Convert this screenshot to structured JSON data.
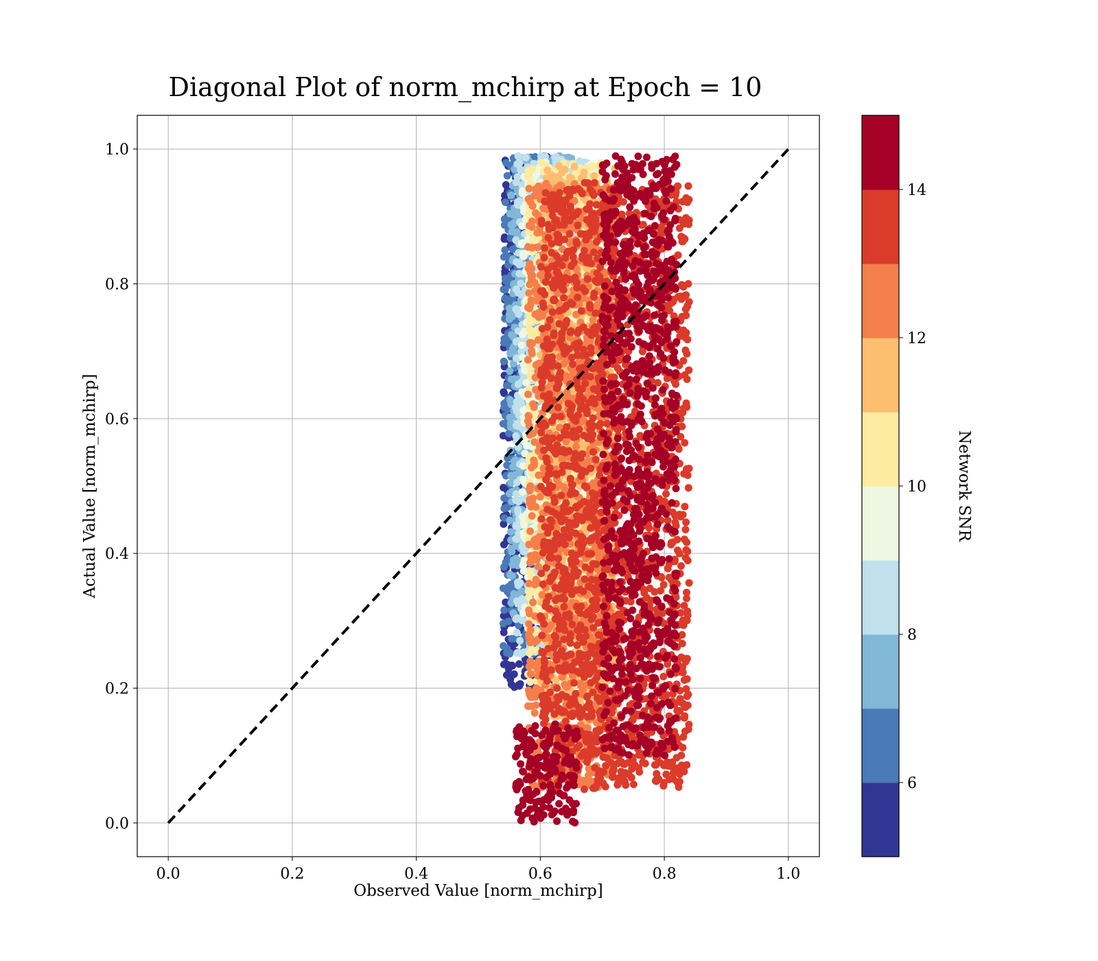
{
  "chart_data": {
    "type": "scatter",
    "title": "Diagonal Plot of norm_mchirp at Epoch = 10",
    "xlabel": "Observed Value [norm_mchirp]",
    "ylabel": "Actual Value [norm_mchirp]",
    "xlim": [
      -0.05,
      1.05
    ],
    "ylim": [
      -0.05,
      1.05
    ],
    "xticks": [
      "0.0",
      "0.2",
      "0.4",
      "0.6",
      "0.8",
      "1.0"
    ],
    "yticks": [
      "0.0",
      "0.2",
      "0.4",
      "0.6",
      "0.8",
      "1.0"
    ],
    "grid": true,
    "reference_line": {
      "x": [
        0,
        1
      ],
      "y": [
        0,
        1
      ],
      "style": "dashed",
      "color": "#000000"
    },
    "colorbar": {
      "label": "Network SNR",
      "range": [
        5,
        15
      ],
      "ticks": [
        "6",
        "8",
        "10",
        "12",
        "14"
      ],
      "tick_values": [
        6,
        8,
        10,
        12,
        14
      ],
      "colors": [
        "#313695",
        "#4a7ab7",
        "#81b7d7",
        "#bfe0ec",
        "#eef7e1",
        "#fdeba2",
        "#fdbe70",
        "#f57f4b",
        "#db3b2a",
        "#a50026"
      ]
    },
    "point_groups": [
      {
        "snr": 5.5,
        "x_range": [
          0.54,
          0.62
        ],
        "y_range": [
          0.2,
          0.99
        ]
      },
      {
        "snr": 6.5,
        "x_range": [
          0.54,
          0.64
        ],
        "y_range": [
          0.25,
          0.99
        ]
      },
      {
        "snr": 7.5,
        "x_range": [
          0.55,
          0.66
        ],
        "y_range": [
          0.3,
          0.99
        ]
      },
      {
        "snr": 8.5,
        "x_range": [
          0.56,
          0.68
        ],
        "y_range": [
          0.25,
          0.99
        ]
      },
      {
        "snr": 9.5,
        "x_range": [
          0.57,
          0.7
        ],
        "y_range": [
          0.3,
          0.98
        ]
      },
      {
        "snr": 10.5,
        "x_range": [
          0.58,
          0.7
        ],
        "y_range": [
          0.2,
          0.98
        ]
      },
      {
        "snr": 11.5,
        "x_range": [
          0.6,
          0.72
        ],
        "y_range": [
          0.15,
          0.98
        ]
      },
      {
        "snr": 12.5,
        "x_range": [
          0.58,
          0.72
        ],
        "y_range": [
          0.05,
          0.95
        ]
      },
      {
        "snr": 13.5,
        "x_range": [
          0.6,
          0.84
        ],
        "y_range": [
          0.05,
          0.95
        ]
      },
      {
        "snr": 14.5,
        "x_range": [
          0.7,
          0.82
        ],
        "y_range": [
          0.1,
          0.99
        ]
      },
      {
        "snr": 14.5,
        "x_range": [
          0.56,
          0.66
        ],
        "y_range": [
          0.0,
          0.15
        ]
      }
    ]
  }
}
